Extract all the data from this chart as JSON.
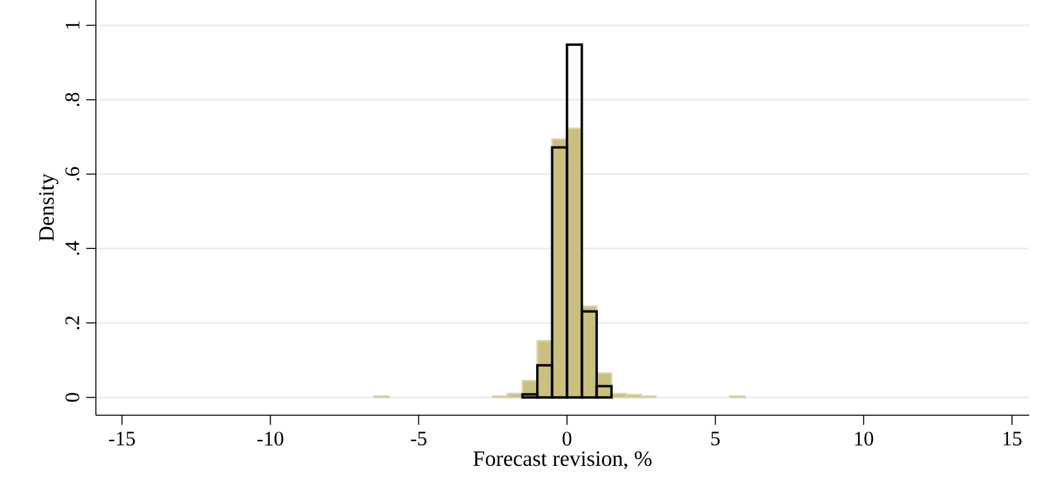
{
  "chart_data": {
    "type": "histogram",
    "xlabel": "Forecast revision, %",
    "ylabel": "Density",
    "bins": [
      -6.5,
      -6,
      -5.5,
      -5,
      -4.5,
      -4,
      -3.5,
      -3,
      -2.5,
      -2,
      -1.5,
      -1,
      -0.5,
      0,
      0.5,
      1,
      1.5,
      2,
      2.5,
      3,
      3.5,
      4,
      4.5,
      5,
      5.5,
      6
    ],
    "series": [
      {
        "color": "#c9c07f",
        "values": [
          0.003,
          null,
          null,
          null,
          null,
          null,
          null,
          null,
          0.003,
          0.01,
          0.045,
          0.152,
          0.694,
          0.723,
          0.245,
          0.065,
          0.01,
          0.007,
          0.003,
          null,
          null,
          null,
          null,
          null,
          0.003
        ]
      },
      {
        "color": "#000000",
        "values": [
          null,
          null,
          null,
          null,
          null,
          null,
          null,
          null,
          null,
          null,
          0.008,
          0.086,
          0.672,
          0.948,
          0.231,
          0.03,
          null,
          null,
          null,
          null,
          null,
          null,
          null,
          null,
          null
        ]
      }
    ],
    "xlim": [
      -15.88,
      15.58
    ],
    "ylim": [
      -0.048,
      1.068
    ],
    "xticks": [
      -15,
      -10,
      -5,
      0,
      5,
      10,
      15
    ],
    "yticks": [
      0,
      {
        "value": 0.2,
        "label": ".2"
      },
      {
        "value": 0.4,
        "label": ".4"
      },
      {
        "value": 0.6,
        "label": ".6"
      },
      {
        "value": 0.8,
        "label": ".8"
      },
      1
    ],
    "grid": "y"
  }
}
